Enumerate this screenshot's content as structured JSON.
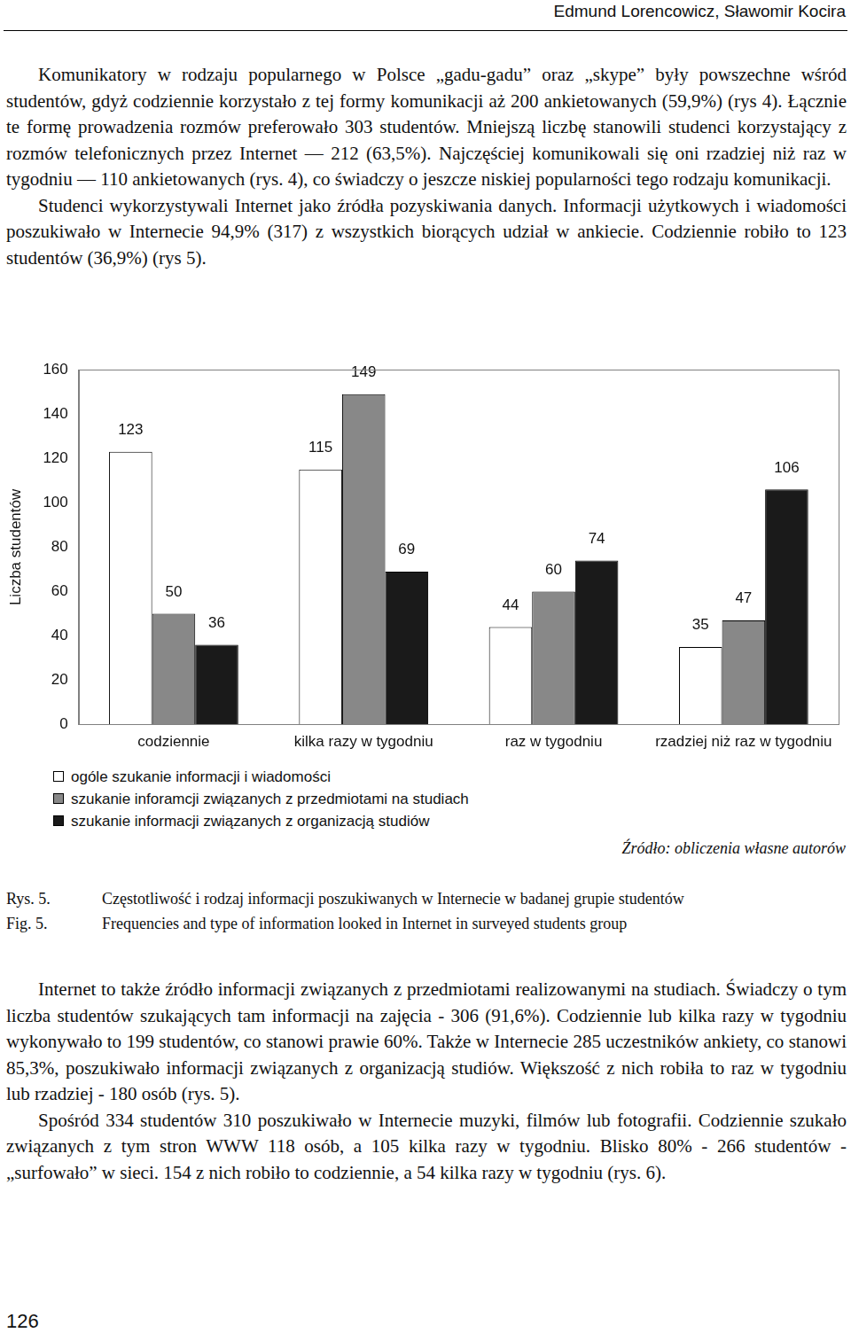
{
  "header": {
    "authors": "Edmund Lorencowicz, Sławomir Kocira"
  },
  "body_top": [
    "Komunikatory w rodzaju popularnego w Polsce „gadu-gadu” oraz „skype” były powszechne wśród studentów, gdyż codziennie korzystało z tej formy komunikacji aż 200 ankietowanych (59,9%) (rys 4). Łącznie te formę prowadzenia rozmów preferowało 303 studentów. Mniejszą liczbę stanowili studenci korzystający z rozmów telefonicznych przez Internet — 212 (63,5%). Najczęściej komunikowali się oni rzadziej niż raz w tygodniu — 110 ankietowanych (rys. 4), co świadczy o jeszcze niskiej popularności tego rodzaju komunikacji.",
    "Studenci wykorzystywali Internet jako źródła pozyskiwania danych. Informacji użytkowych i wiadomości poszukiwało w Internecie 94,9% (317) z wszystkich biorących udział w ankiecie. Codziennie robiło to 123 studentów (36,9%) (rys 5)."
  ],
  "chart_data": {
    "type": "bar",
    "categories": [
      "codziennie",
      "kilka razy w tygodniu",
      "raz w tygodniu",
      "rzadziej niż raz w tygodniu"
    ],
    "series": [
      {
        "name": "ogóle szukanie informacji i wiadomości",
        "color": "#ffffff",
        "values": [
          123,
          115,
          44,
          35
        ]
      },
      {
        "name": "szukanie inforamcji związanych z przedmiotami na studiach",
        "color": "#888888",
        "values": [
          50,
          149,
          60,
          47
        ]
      },
      {
        "name": "szukanie informacji związanych z organizacją studiów",
        "color": "#1a1a1a",
        "values": [
          36,
          69,
          74,
          106
        ]
      }
    ],
    "y_label": "Liczba studentów",
    "ylim": [
      0,
      160
    ],
    "yticks": [
      0,
      20,
      40,
      60,
      80,
      100,
      120,
      140,
      160
    ],
    "grid": false,
    "legend": "bottom",
    "data_labels": true
  },
  "source": "Źródło: obliczenia własne autorów",
  "caption": [
    {
      "label": "Rys. 5.",
      "text": "Częstotliwość i rodzaj informacji poszukiwanych w Internecie w badanej grupie studentów"
    },
    {
      "label": "Fig. 5.",
      "text": "Frequencies and type of information looked in Internet in surveyed students group"
    }
  ],
  "body_bottom": [
    "Internet to także źródło informacji związanych z przedmiotami realizowanymi na studiach. Świadczy o tym liczba studentów szukających tam informacji na zajęcia - 306 (91,6%). Codziennie lub kilka razy w tygodniu wykonywało to 199 studentów, co stanowi prawie 60%. Także w Internecie 285 uczestników ankiety, co stanowi 85,3%, poszukiwało informacji związanych z organizacją studiów. Większość z nich robiła to raz w tygodniu lub rzadziej - 180 osób (rys. 5).",
    "Spośród 334 studentów 310 poszukiwało w Internecie muzyki, filmów lub fotografii. Codziennie szukało związanych z tym stron WWW 118 osób, a 105 kilka razy w tygodniu. Blisko 80% - 266 studentów - „surfowało” w sieci. 154 z nich robiło to codziennie, a 54 kilka razy w tygodniu (rys. 6)."
  ],
  "page_number": 126
}
